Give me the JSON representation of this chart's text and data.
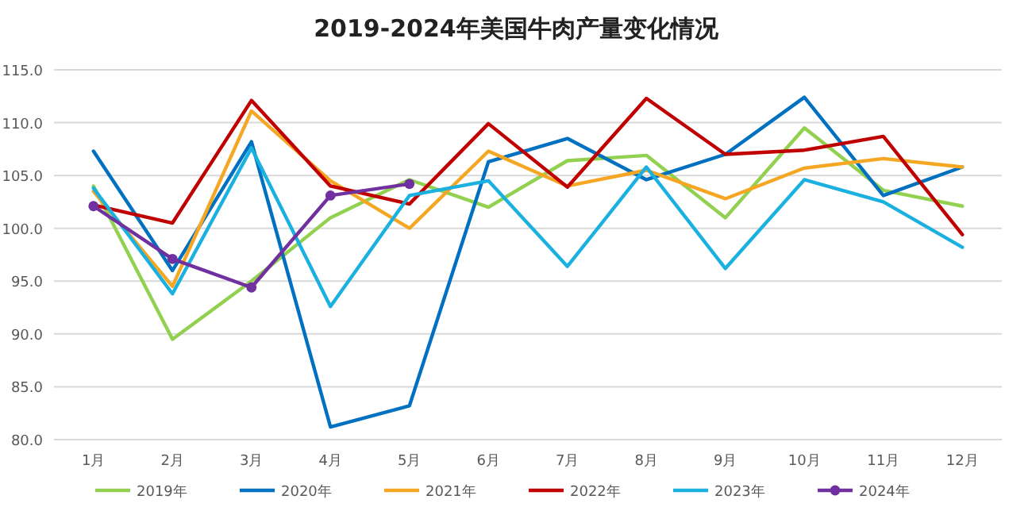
{
  "chart_data": {
    "type": "line",
    "title": "2019-2024年美国牛肉产量变化情况",
    "categories": [
      "1月",
      "2月",
      "3月",
      "4月",
      "5月",
      "6月",
      "7月",
      "8月",
      "9月",
      "10月",
      "11月",
      "12月"
    ],
    "ylim": [
      80,
      115
    ],
    "yticks": [
      {
        "value": 80,
        "label": "80.0"
      },
      {
        "value": 85,
        "label": "85.0"
      },
      {
        "value": 90,
        "label": "90.0"
      },
      {
        "value": 95,
        "label": "95.0"
      },
      {
        "value": 100,
        "label": "100.0"
      },
      {
        "value": 105,
        "label": "105.0"
      },
      {
        "value": 110,
        "label": "110.0"
      },
      {
        "value": 115,
        "label": "115.0"
      }
    ],
    "grid": "y",
    "legend": "bottom",
    "marker": "none",
    "series": [
      {
        "name": "2019年",
        "color": "#92d050",
        "values": [
          104.0,
          89.5,
          95.0,
          101.0,
          104.6,
          102.0,
          106.4,
          106.9,
          101.0,
          109.5,
          103.6,
          102.1
        ]
      },
      {
        "name": "2020年",
        "color": "#0070c0",
        "values": [
          107.3,
          96.0,
          108.2,
          81.2,
          83.2,
          106.3,
          108.5,
          104.6,
          107.0,
          112.4,
          103.1,
          105.8
        ]
      },
      {
        "name": "2021年",
        "color": "#f5a623",
        "values": [
          103.5,
          94.5,
          111.1,
          104.5,
          100.0,
          107.3,
          104.0,
          105.5,
          102.8,
          105.7,
          106.6,
          105.8
        ]
      },
      {
        "name": "2022年",
        "color": "#c00000",
        "values": [
          102.2,
          100.5,
          112.1,
          104.0,
          102.3,
          109.9,
          103.9,
          112.3,
          107.0,
          107.4,
          108.7,
          99.4
        ]
      },
      {
        "name": "2023年",
        "color": "#1ab0e0",
        "values": [
          103.8,
          93.8,
          107.6,
          92.6,
          103.1,
          104.5,
          96.4,
          105.8,
          96.2,
          104.6,
          102.5,
          98.2
        ]
      },
      {
        "name": "2024年",
        "color": "#7030a0",
        "marker": "circle",
        "values": [
          102.1,
          97.1,
          94.4,
          103.1,
          104.2,
          null,
          null,
          null,
          null,
          null,
          null,
          null
        ]
      }
    ]
  }
}
